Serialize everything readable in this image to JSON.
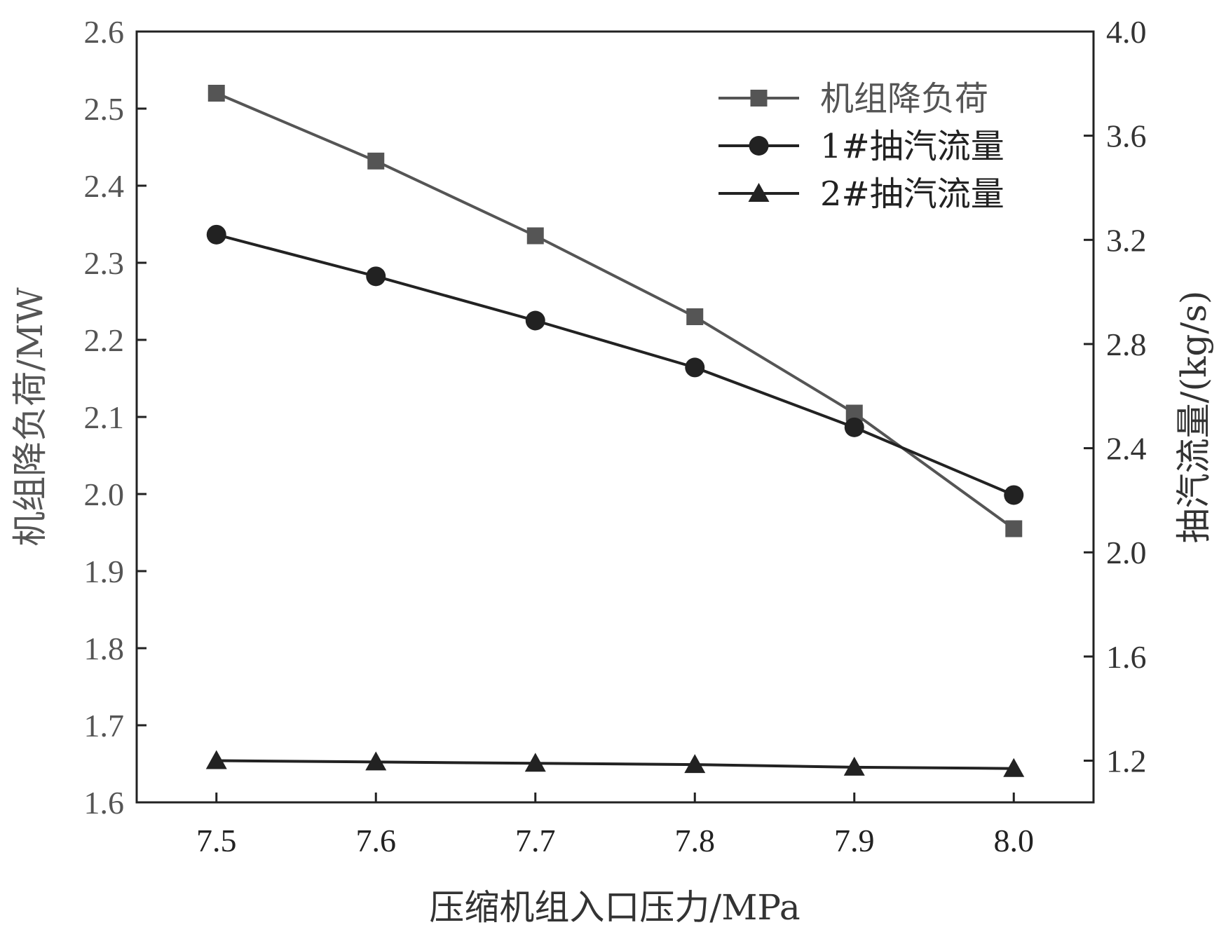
{
  "chart_data": {
    "type": "line",
    "x": [
      7.5,
      7.6,
      7.7,
      7.8,
      7.9,
      8.0
    ],
    "xlabel": "压缩机组入口压力/MPa",
    "xticks": [
      "7.5",
      "7.6",
      "7.7",
      "7.8",
      "7.9",
      "8.0"
    ],
    "xlim": [
      7.45,
      8.05
    ],
    "ylabel_left": "机组降负荷/MW",
    "ylim_left": [
      1.6,
      2.6
    ],
    "yticks_left": [
      "1.6",
      "1.7",
      "1.8",
      "1.9",
      "2.0",
      "2.1",
      "2.2",
      "2.3",
      "2.4",
      "2.5",
      "2.6"
    ],
    "ylabel_right": "抽汽流量/(kg/s)",
    "ylim_right": [
      1.04,
      4.0
    ],
    "yticks_right": [
      "1.2",
      "1.6",
      "2.0",
      "2.4",
      "2.8",
      "3.2",
      "3.6",
      "4.0"
    ],
    "legend_position": "top-right",
    "grid": false,
    "series": [
      {
        "name": "机组降负荷",
        "axis": "left",
        "marker": "square",
        "color": "#555555",
        "values": [
          2.52,
          2.432,
          2.335,
          2.23,
          2.105,
          1.955
        ]
      },
      {
        "name": "1#抽汽流量",
        "axis": "right",
        "marker": "circle",
        "color": "#222222",
        "values": [
          3.22,
          3.06,
          2.89,
          2.71,
          2.48,
          2.22
        ]
      },
      {
        "name": "2#抽汽流量",
        "axis": "right",
        "marker": "triangle",
        "color": "#222222",
        "values": [
          1.2,
          1.195,
          1.19,
          1.185,
          1.175,
          1.17
        ]
      }
    ]
  }
}
